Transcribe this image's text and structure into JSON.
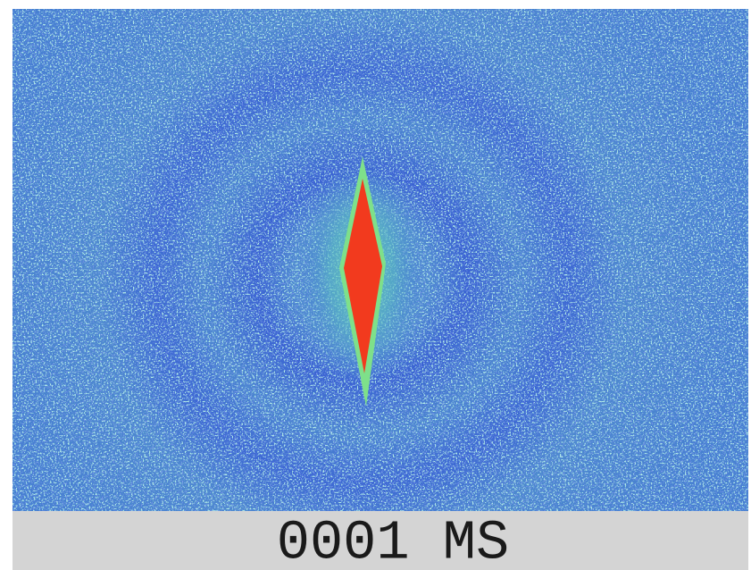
{
  "caption": "0001 MS"
}
